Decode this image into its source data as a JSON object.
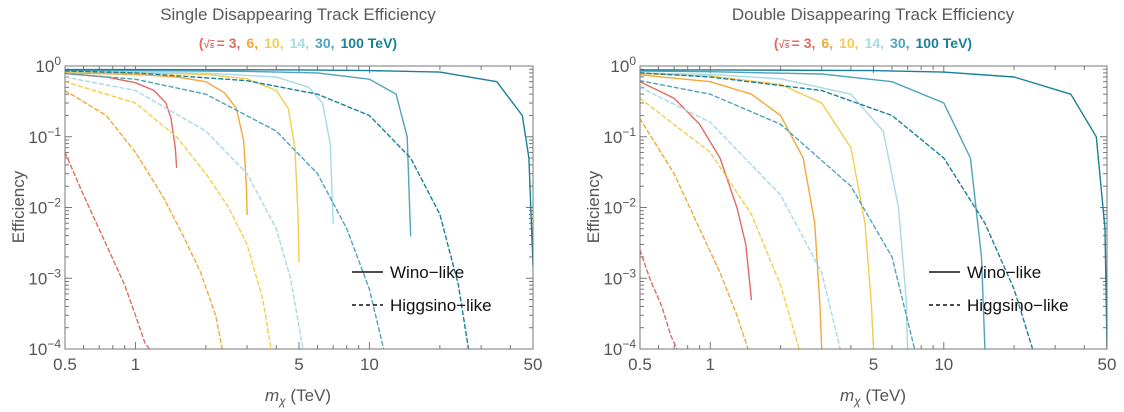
{
  "chart_data": [
    {
      "type": "line",
      "title": "Single Disappearing Track Efficiency",
      "energy_legend": {
        "prefix_open": "(",
        "sqrt": "√",
        "s": "s",
        "eq": "= ",
        "entries": [
          {
            "label": "3,",
            "color": "#e06b5e"
          },
          {
            "label": "6,",
            "color": "#f2a83b"
          },
          {
            "label": "10,",
            "color": "#f2cd50"
          },
          {
            "label": "14,",
            "color": "#a7d9e8"
          },
          {
            "label": "30,",
            "color": "#4fa3bc"
          },
          {
            "label": "100 TeV)",
            "color": "#1a7f9a"
          }
        ]
      },
      "xlabel_italic": "m",
      "xlabel_sub": "χ",
      "xlabel_rest": " (TeV)",
      "ylabel": "Efficiency",
      "xlim": [
        0.5,
        50
      ],
      "ylim": [
        0.0001,
        1
      ],
      "xscale": "log",
      "yscale": "log",
      "x_ticks": [
        {
          "v": 0.5,
          "label": "0.5"
        },
        {
          "v": 1,
          "label": "1"
        },
        {
          "v": 5,
          "label": "5"
        },
        {
          "v": 10,
          "label": "10"
        },
        {
          "v": 50,
          "label": "50"
        }
      ],
      "y_ticks": [
        {
          "v": 0.0001,
          "b": "10",
          "e": "−4"
        },
        {
          "v": 0.001,
          "b": "10",
          "e": "−3"
        },
        {
          "v": 0.01,
          "b": "10",
          "e": "−2"
        },
        {
          "v": 0.1,
          "b": "10",
          "e": "−1"
        },
        {
          "v": 1,
          "b": "10",
          "e": "0"
        }
      ],
      "legend": {
        "placement": "lower-right",
        "solid": "Wino−like",
        "dashed": "Higgsino−like"
      },
      "series": [
        {
          "color": "#e06b5e",
          "style": "solid",
          "x": [
            0.5,
            0.75,
            1,
            1.2,
            1.35,
            1.42,
            1.48,
            1.5
          ],
          "y": [
            0.78,
            0.7,
            0.58,
            0.45,
            0.3,
            0.18,
            0.07,
            0.037
          ]
        },
        {
          "color": "#f2a83b",
          "style": "solid",
          "x": [
            0.5,
            1,
            1.5,
            2,
            2.4,
            2.7,
            2.9,
            2.98,
            3
          ],
          "y": [
            0.8,
            0.76,
            0.7,
            0.6,
            0.42,
            0.25,
            0.09,
            0.02,
            0.008
          ]
        },
        {
          "color": "#f2cd50",
          "style": "solid",
          "x": [
            0.5,
            1,
            2,
            3,
            4,
            4.5,
            4.8,
            4.95,
            5
          ],
          "y": [
            0.82,
            0.8,
            0.76,
            0.66,
            0.45,
            0.25,
            0.07,
            0.008,
            0.0017
          ]
        },
        {
          "color": "#a7d9e8",
          "style": "solid",
          "x": [
            0.5,
            1,
            2,
            4,
            5.5,
            6.3,
            6.8,
            7
          ],
          "y": [
            0.84,
            0.82,
            0.79,
            0.7,
            0.5,
            0.3,
            0.08,
            0.006
          ]
        },
        {
          "color": "#4fa3bc",
          "style": "solid",
          "x": [
            0.5,
            1,
            3,
            6,
            10,
            13,
            14.5,
            15
          ],
          "y": [
            0.87,
            0.86,
            0.84,
            0.8,
            0.65,
            0.4,
            0.1,
            0.004
          ]
        },
        {
          "color": "#1a7f9a",
          "style": "solid",
          "x": [
            0.5,
            1,
            5,
            10,
            20,
            35,
            45,
            48,
            50
          ],
          "y": [
            0.89,
            0.89,
            0.88,
            0.86,
            0.82,
            0.6,
            0.2,
            0.05,
            0.0015
          ]
        },
        {
          "color": "#e06b5e",
          "style": "dashed",
          "x": [
            0.5,
            0.6,
            0.75,
            0.9,
            1,
            1.1,
            1.15
          ],
          "y": [
            0.06,
            0.015,
            0.003,
            0.0008,
            0.0003,
            0.00012,
            0.0001
          ]
        },
        {
          "color": "#f2a83b",
          "style": "dashed",
          "x": [
            0.5,
            0.75,
            1,
            1.3,
            1.6,
            1.9,
            2.2,
            2.35
          ],
          "y": [
            0.45,
            0.2,
            0.06,
            0.015,
            0.004,
            0.0012,
            0.0003,
            0.0001
          ]
        },
        {
          "color": "#f2cd50",
          "style": "dashed",
          "x": [
            0.5,
            1,
            1.5,
            2,
            2.5,
            3,
            3.5,
            3.8
          ],
          "y": [
            0.6,
            0.3,
            0.1,
            0.03,
            0.01,
            0.003,
            0.0005,
            0.0001
          ]
        },
        {
          "color": "#a7d9e8",
          "style": "dashed",
          "x": [
            0.5,
            1,
            2,
            3,
            4,
            4.6,
            5.2
          ],
          "y": [
            0.7,
            0.45,
            0.12,
            0.03,
            0.005,
            0.001,
            0.0001
          ]
        },
        {
          "color": "#4fa3bc",
          "style": "dashed",
          "x": [
            0.5,
            1,
            2,
            4,
            6,
            8,
            10,
            11.5
          ],
          "y": [
            0.78,
            0.65,
            0.4,
            0.12,
            0.03,
            0.005,
            0.0007,
            0.0001
          ]
        },
        {
          "color": "#1a7f9a",
          "style": "dashed",
          "x": [
            0.5,
            1,
            3,
            6,
            10,
            15,
            20,
            24,
            26.5
          ],
          "y": [
            0.85,
            0.8,
            0.62,
            0.4,
            0.2,
            0.05,
            0.008,
            0.0008,
            0.0001
          ]
        }
      ]
    },
    {
      "type": "line",
      "title": "Double Disappearing Track Efficiency",
      "energy_legend": {
        "prefix_open": "(",
        "sqrt": "√",
        "s": "s",
        "eq": "= ",
        "entries": [
          {
            "label": "3,",
            "color": "#e06b5e"
          },
          {
            "label": "6,",
            "color": "#f2a83b"
          },
          {
            "label": "10,",
            "color": "#f2cd50"
          },
          {
            "label": "14,",
            "color": "#a7d9e8"
          },
          {
            "label": "30,",
            "color": "#4fa3bc"
          },
          {
            "label": "100 TeV)",
            "color": "#1a7f9a"
          }
        ]
      },
      "xlabel_italic": "m",
      "xlabel_sub": "χ",
      "xlabel_rest": " (TeV)",
      "ylabel": "Efficiency",
      "xlim": [
        0.5,
        50
      ],
      "ylim": [
        0.0001,
        1
      ],
      "xscale": "log",
      "yscale": "log",
      "x_ticks": [
        {
          "v": 0.5,
          "label": "0.5"
        },
        {
          "v": 1,
          "label": "1"
        },
        {
          "v": 5,
          "label": "5"
        },
        {
          "v": 10,
          "label": "10"
        },
        {
          "v": 50,
          "label": "50"
        }
      ],
      "y_ticks": [
        {
          "v": 0.0001,
          "b": "10",
          "e": "−4"
        },
        {
          "v": 0.001,
          "b": "10",
          "e": "−3"
        },
        {
          "v": 0.01,
          "b": "10",
          "e": "−2"
        },
        {
          "v": 0.1,
          "b": "10",
          "e": "−1"
        },
        {
          "v": 1,
          "b": "10",
          "e": "0"
        }
      ],
      "legend": {
        "placement": "lower-right",
        "solid": "Wino−like",
        "dashed": "Higgsino−like"
      },
      "series": [
        {
          "color": "#e06b5e",
          "style": "solid",
          "x": [
            0.5,
            0.7,
            0.9,
            1.1,
            1.3,
            1.42,
            1.5
          ],
          "y": [
            0.6,
            0.35,
            0.15,
            0.05,
            0.01,
            0.003,
            0.0005
          ]
        },
        {
          "color": "#f2a83b",
          "style": "solid",
          "x": [
            0.5,
            1,
            1.5,
            2,
            2.5,
            2.8,
            2.95,
            3
          ],
          "y": [
            0.75,
            0.6,
            0.4,
            0.2,
            0.05,
            0.006,
            0.0004,
            0.0001
          ]
        },
        {
          "color": "#f2cd50",
          "style": "solid",
          "x": [
            0.5,
            1,
            2,
            3,
            4,
            4.6,
            4.9,
            5
          ],
          "y": [
            0.78,
            0.72,
            0.55,
            0.3,
            0.07,
            0.006,
            0.0004,
            0.0001
          ]
        },
        {
          "color": "#a7d9e8",
          "style": "solid",
          "x": [
            0.5,
            1,
            2,
            4,
            5.5,
            6.4,
            6.9,
            7
          ],
          "y": [
            0.8,
            0.76,
            0.66,
            0.4,
            0.12,
            0.01,
            0.0005,
            0.0001
          ]
        },
        {
          "color": "#4fa3bc",
          "style": "solid",
          "x": [
            0.5,
            1,
            3,
            6,
            10,
            13,
            14.5,
            15
          ],
          "y": [
            0.85,
            0.83,
            0.77,
            0.6,
            0.3,
            0.05,
            0.002,
            0.0001
          ]
        },
        {
          "color": "#1a7f9a",
          "style": "solid",
          "x": [
            0.5,
            1,
            5,
            10,
            20,
            35,
            45,
            49,
            50
          ],
          "y": [
            0.88,
            0.88,
            0.86,
            0.82,
            0.7,
            0.4,
            0.1,
            0.005,
            0.0001
          ]
        },
        {
          "color": "#e06b5e",
          "style": "dashed",
          "x": [
            0.5,
            0.55,
            0.62,
            0.68,
            0.72
          ],
          "y": [
            0.0025,
            0.001,
            0.0004,
            0.00015,
            0.0001
          ]
        },
        {
          "color": "#f2a83b",
          "style": "dashed",
          "x": [
            0.5,
            0.7,
            0.9,
            1.1,
            1.3,
            1.45
          ],
          "y": [
            0.18,
            0.03,
            0.005,
            0.0012,
            0.0003,
            0.0001
          ]
        },
        {
          "color": "#f2cd50",
          "style": "dashed",
          "x": [
            0.5,
            1,
            1.5,
            2,
            2.4
          ],
          "y": [
            0.35,
            0.06,
            0.008,
            0.0008,
            0.0001
          ]
        },
        {
          "color": "#a7d9e8",
          "style": "dashed",
          "x": [
            0.5,
            1,
            2,
            3,
            3.6
          ],
          "y": [
            0.5,
            0.16,
            0.015,
            0.0012,
            0.0001
          ]
        },
        {
          "color": "#4fa3bc",
          "style": "dashed",
          "x": [
            0.5,
            1,
            2,
            4,
            6,
            7.5
          ],
          "y": [
            0.62,
            0.4,
            0.15,
            0.02,
            0.002,
            0.0001
          ]
        },
        {
          "color": "#1a7f9a",
          "style": "dashed",
          "x": [
            0.5,
            1,
            3,
            6,
            10,
            15,
            20,
            24
          ],
          "y": [
            0.8,
            0.7,
            0.45,
            0.2,
            0.05,
            0.006,
            0.0007,
            0.0001
          ]
        }
      ]
    }
  ]
}
